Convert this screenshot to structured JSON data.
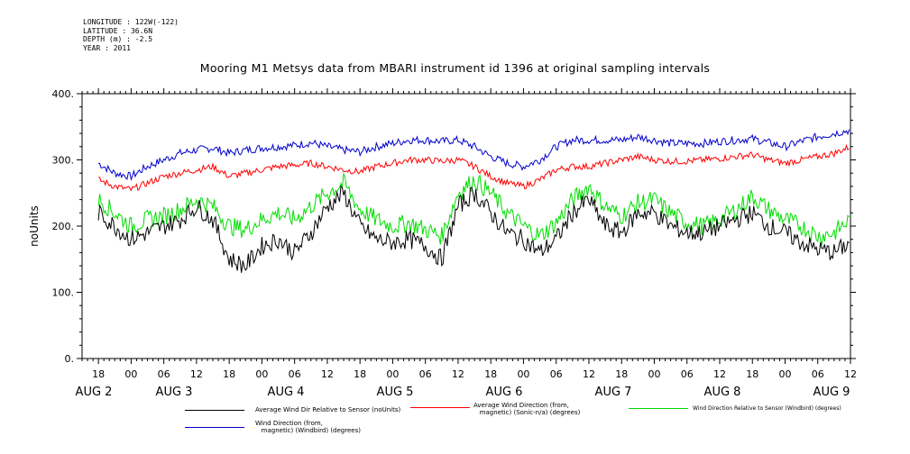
{
  "header": {
    "meta": [
      "LONGITUDE : 122W(-122)",
      "LATITUDE : 36.6N",
      "DEPTH (m) : -2.5",
      "YEAR : 2011"
    ],
    "title": "Mooring M1 Metsys data from MBARI instrument id 1396 at original sampling intervals"
  },
  "chart_data": {
    "type": "line",
    "title": "Mooring M1 Metsys data from MBARI instrument id 1396 at original sampling intervals",
    "xlabel": "",
    "ylabel": "noUnits",
    "ylim": [
      0,
      400
    ],
    "y_ticks": [
      0,
      100,
      200,
      300,
      400
    ],
    "y_tick_labels": [
      "0.",
      "100.",
      "200.",
      "300.",
      "400."
    ],
    "x_unit": "hours since 2011-08-02 00:00",
    "xlim": [
      -9,
      132
    ],
    "hour_ticks": [
      {
        "h": -6,
        "label": "18"
      },
      {
        "h": 0,
        "label": "00"
      },
      {
        "h": 6,
        "label": "06"
      },
      {
        "h": 12,
        "label": "12"
      },
      {
        "h": 18,
        "label": "18"
      },
      {
        "h": 24,
        "label": "00"
      },
      {
        "h": 30,
        "label": "06"
      },
      {
        "h": 36,
        "label": "12"
      },
      {
        "h": 42,
        "label": "18"
      },
      {
        "h": 48,
        "label": "00"
      },
      {
        "h": 54,
        "label": "06"
      },
      {
        "h": 60,
        "label": "12"
      },
      {
        "h": 66,
        "label": "18"
      },
      {
        "h": 72,
        "label": "00"
      },
      {
        "h": 78,
        "label": "06"
      },
      {
        "h": 84,
        "label": "12"
      },
      {
        "h": 90,
        "label": "18"
      },
      {
        "h": 96,
        "label": "00"
      },
      {
        "h": 102,
        "label": "06"
      },
      {
        "h": 108,
        "label": "12"
      },
      {
        "h": 114,
        "label": "18"
      },
      {
        "h": 120,
        "label": "00"
      },
      {
        "h": 126,
        "label": "06"
      },
      {
        "h": 132,
        "label": "12"
      }
    ],
    "day_labels": [
      {
        "h": -4.5,
        "label": "AUG  2"
      },
      {
        "h": 11,
        "label": "AUG  3"
      },
      {
        "h": 35,
        "label": "AUG  4"
      },
      {
        "h": 59,
        "label": "AUG  5"
      },
      {
        "h": 83,
        "label": "AUG  6"
      },
      {
        "h": 107,
        "label": "AUG  7"
      },
      {
        "h": 131,
        "label": "AUG  8"
      },
      {
        "h": 155,
        "label": "AUG  9"
      }
    ],
    "series": [
      {
        "name": "Average Wind Dir Relative to Sensor (noUnits)",
        "color": "#000000",
        "x": [
          -6,
          -3,
          0,
          3,
          6,
          9,
          12,
          15,
          18,
          21,
          24,
          27,
          30,
          33,
          36,
          39,
          42,
          45,
          48,
          51,
          54,
          57,
          60,
          63,
          66,
          69,
          72,
          75,
          78,
          81,
          84,
          87,
          90,
          93,
          96,
          99,
          102,
          105,
          108,
          111,
          114,
          117,
          120,
          123,
          126,
          129,
          132
        ],
        "y": [
          220,
          200,
          180,
          190,
          200,
          210,
          230,
          210,
          150,
          140,
          170,
          180,
          160,
          190,
          230,
          250,
          200,
          180,
          175,
          180,
          170,
          150,
          230,
          250,
          220,
          190,
          180,
          160,
          180,
          220,
          240,
          200,
          190,
          220,
          220,
          200,
          190,
          190,
          200,
          210,
          220,
          200,
          190,
          175,
          165,
          160,
          175
        ]
      },
      {
        "name": "Average Wind Direction (from, magnetic) (Sonic-n/a) (degrees)",
        "color": "#ff0000",
        "x": [
          -6,
          -3,
          0,
          3,
          6,
          9,
          12,
          15,
          18,
          21,
          24,
          27,
          30,
          33,
          36,
          39,
          42,
          45,
          48,
          51,
          54,
          57,
          60,
          63,
          66,
          69,
          72,
          75,
          78,
          81,
          84,
          87,
          90,
          93,
          96,
          99,
          102,
          105,
          108,
          111,
          114,
          117,
          120,
          123,
          126,
          129,
          132
        ],
        "y": [
          270,
          260,
          255,
          265,
          275,
          280,
          285,
          290,
          275,
          280,
          285,
          290,
          292,
          295,
          290,
          285,
          282,
          290,
          295,
          300,
          300,
          298,
          300,
          290,
          275,
          265,
          260,
          270,
          285,
          290,
          290,
          295,
          300,
          305,
          300,
          298,
          298,
          300,
          302,
          305,
          308,
          300,
          295,
          300,
          305,
          310,
          320
        ]
      },
      {
        "name": "Wind Direction Relative to Sensor (Windbird) (degrees)",
        "color": "#00dd00",
        "x": [
          -6,
          -3,
          0,
          3,
          6,
          9,
          12,
          15,
          18,
          21,
          24,
          27,
          30,
          33,
          36,
          39,
          42,
          45,
          48,
          51,
          54,
          57,
          60,
          63,
          66,
          69,
          72,
          75,
          78,
          81,
          84,
          87,
          90,
          93,
          96,
          99,
          102,
          105,
          108,
          111,
          114,
          117,
          120,
          123,
          126,
          129,
          132
        ],
        "y": [
          240,
          220,
          200,
          210,
          215,
          225,
          240,
          230,
          200,
          195,
          210,
          220,
          210,
          230,
          250,
          265,
          225,
          210,
          200,
          205,
          195,
          185,
          250,
          270,
          250,
          220,
          200,
          185,
          205,
          240,
          260,
          230,
          215,
          235,
          240,
          220,
          205,
          200,
          210,
          225,
          245,
          225,
          210,
          200,
          185,
          190,
          210
        ]
      },
      {
        "name": "Wind Direction (from, magnetic) (Windbird) (degrees)",
        "color": "#0000cc",
        "x": [
          -6,
          -3,
          0,
          3,
          6,
          9,
          12,
          15,
          18,
          21,
          24,
          27,
          30,
          33,
          36,
          39,
          42,
          45,
          48,
          51,
          54,
          57,
          60,
          63,
          66,
          69,
          72,
          75,
          78,
          81,
          84,
          87,
          90,
          93,
          96,
          99,
          102,
          105,
          108,
          111,
          114,
          117,
          120,
          123,
          126,
          129,
          132
        ],
        "y": [
          295,
          280,
          275,
          290,
          300,
          310,
          315,
          318,
          310,
          315,
          318,
          320,
          322,
          326,
          320,
          315,
          312,
          320,
          325,
          330,
          330,
          328,
          330,
          320,
          305,
          295,
          290,
          300,
          320,
          330,
          330,
          330,
          330,
          335,
          330,
          325,
          325,
          325,
          328,
          330,
          332,
          326,
          320,
          328,
          335,
          340,
          345
        ]
      }
    ],
    "legend_placement": "bottom"
  },
  "legend": {
    "black_label": "Average Wind Dir Relative to Sensor (noUnits)",
    "red_label": "Average Wind Direction (from,\n   magnetic) (Sonic-n/a) (degrees)",
    "green_label": "Wind Direction Relative to Sensor (Windbird) (degrees)",
    "blue_label": "Wind Direction (from,\n   magnetic) (Windbird) (degrees)"
  }
}
